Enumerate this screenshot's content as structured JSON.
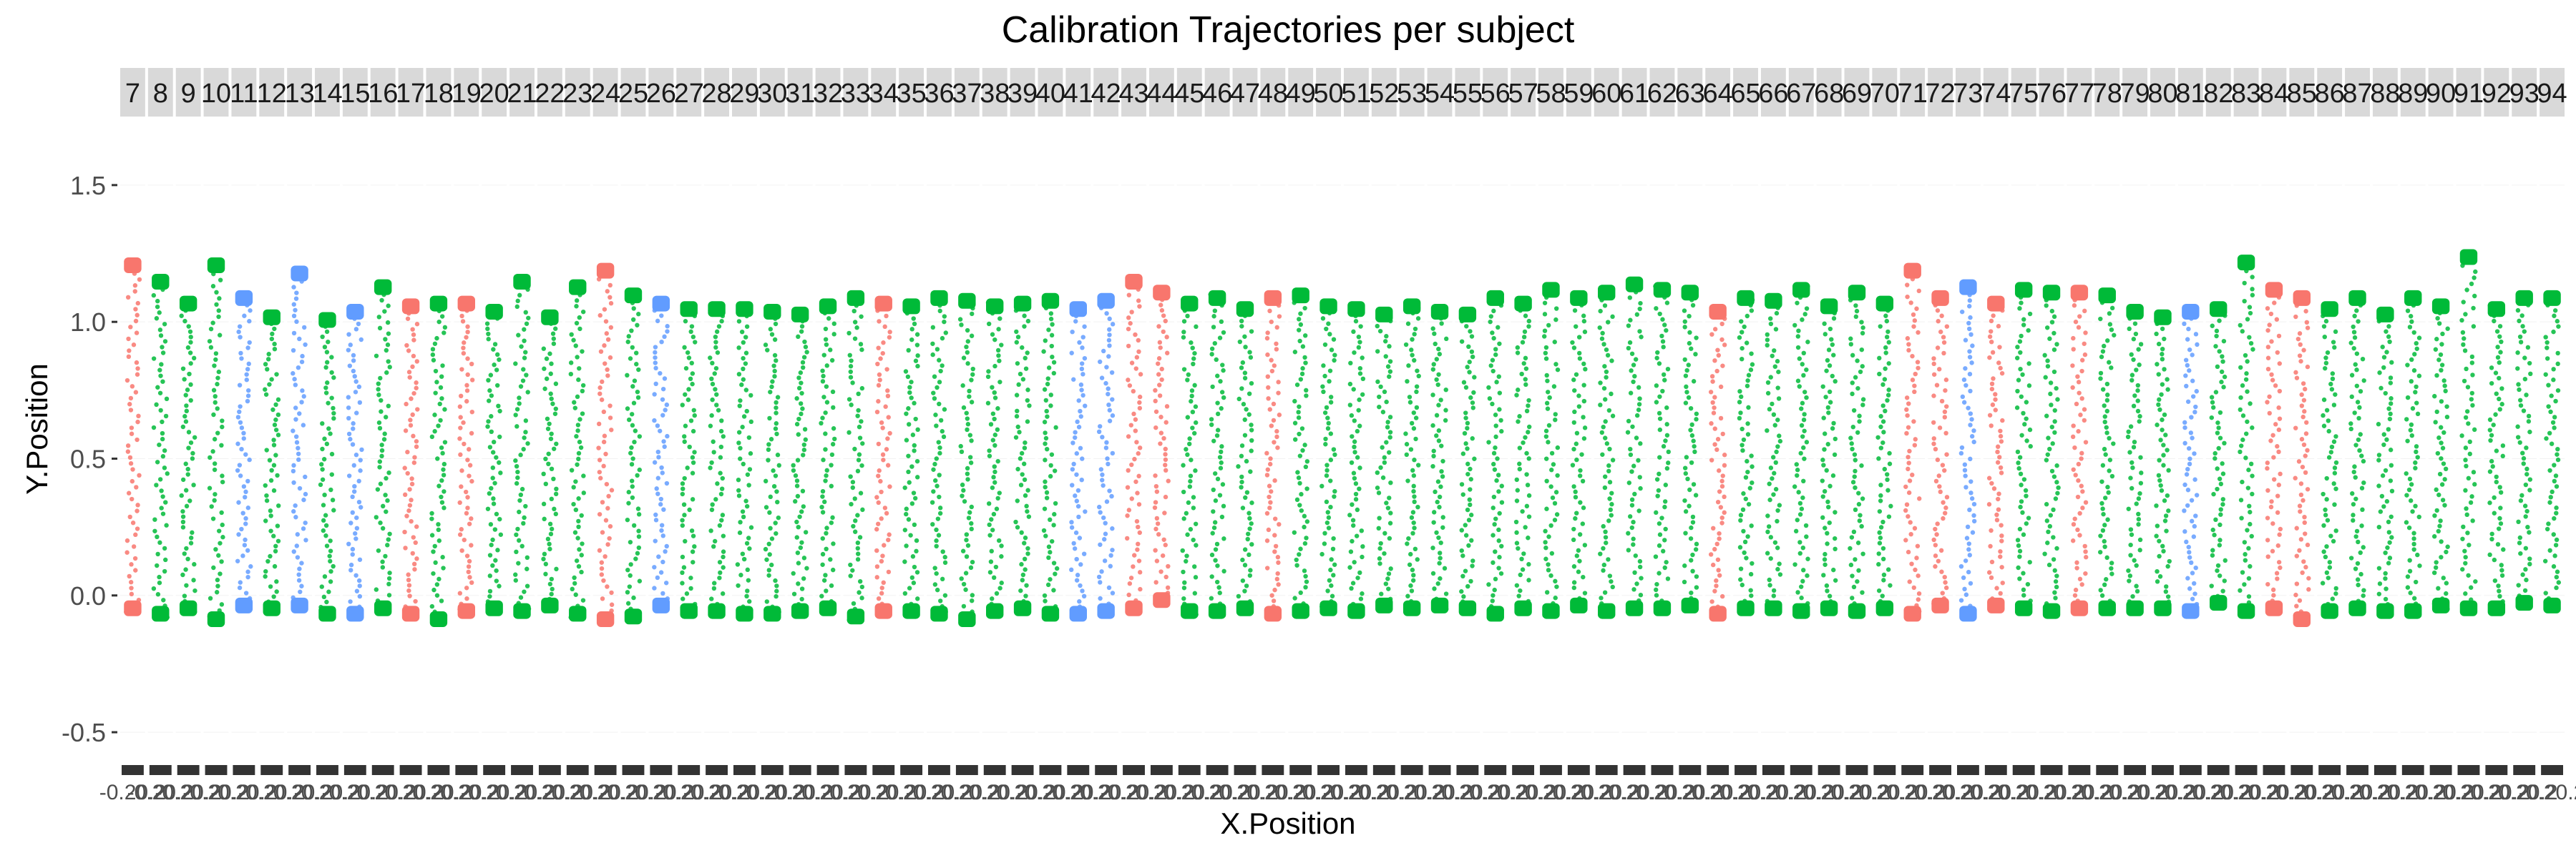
{
  "chart_data": {
    "type": "scatter",
    "title": "Calibration Trajectories per subject",
    "xlabel": "X.Position",
    "ylabel": "Y.Position",
    "ylim": [
      -0.62,
      1.68
    ],
    "y_ticks": [
      -0.5,
      0.0,
      0.5,
      1.0,
      1.5
    ],
    "y_tick_labels": [
      "-0.5",
      "0.0",
      "0.5",
      "1.0",
      "1.5"
    ],
    "facets": [
      "7",
      "8",
      "9",
      "10",
      "11",
      "12",
      "13",
      "14",
      "15",
      "16",
      "17",
      "18",
      "19",
      "20",
      "21",
      "22",
      "23",
      "24",
      "25",
      "26",
      "27",
      "28",
      "29",
      "30",
      "31",
      "32",
      "33",
      "34",
      "35",
      "36",
      "37",
      "38",
      "39",
      "40",
      "41",
      "42",
      "43",
      "44",
      "45",
      "46",
      "47",
      "48",
      "49",
      "50",
      "51",
      "52",
      "53",
      "54",
      "55",
      "56",
      "57",
      "58",
      "59",
      "60",
      "61",
      "62",
      "63",
      "64",
      "65",
      "66",
      "67",
      "68",
      "69",
      "70",
      "71",
      "72",
      "73",
      "74",
      "75",
      "76",
      "77",
      "78",
      "79",
      "80",
      "81",
      "82",
      "83",
      "84",
      "85",
      "86",
      "87",
      "88",
      "89",
      "90",
      "91",
      "92",
      "93",
      "94"
    ],
    "facet_x_tick_labels": [
      "-0.2",
      "0.2"
    ],
    "series_colors": {
      "red": "#f8766d",
      "green": "#00ba38",
      "blue": "#619cff"
    },
    "facet_color": [
      "red",
      "green",
      "green",
      "green",
      "blue",
      "green",
      "blue",
      "green",
      "blue",
      "green",
      "red",
      "green",
      "red",
      "green",
      "green",
      "green",
      "green",
      "red",
      "green",
      "blue",
      "green",
      "green",
      "green",
      "green",
      "green",
      "green",
      "green",
      "red",
      "green",
      "green",
      "green",
      "green",
      "green",
      "green",
      "blue",
      "blue",
      "red",
      "red",
      "green",
      "green",
      "green",
      "red",
      "green",
      "green",
      "green",
      "green",
      "green",
      "green",
      "green",
      "green",
      "green",
      "green",
      "green",
      "green",
      "green",
      "green",
      "green",
      "red",
      "green",
      "green",
      "green",
      "green",
      "green",
      "green",
      "red",
      "red",
      "blue",
      "red",
      "green",
      "green",
      "red",
      "green",
      "green",
      "green",
      "blue",
      "green",
      "green",
      "red",
      "red",
      "green",
      "green",
      "green",
      "green",
      "green",
      "green",
      "green",
      "green",
      "green"
    ],
    "facet_y_range": [
      [
        -0.06,
        1.22
      ],
      [
        -0.08,
        1.16
      ],
      [
        -0.06,
        1.08
      ],
      [
        -0.1,
        1.22
      ],
      [
        -0.05,
        1.1
      ],
      [
        -0.06,
        1.03
      ],
      [
        -0.05,
        1.19
      ],
      [
        -0.08,
        1.02
      ],
      [
        -0.08,
        1.05
      ],
      [
        -0.06,
        1.14
      ],
      [
        -0.08,
        1.07
      ],
      [
        -0.1,
        1.08
      ],
      [
        -0.07,
        1.08
      ],
      [
        -0.06,
        1.05
      ],
      [
        -0.07,
        1.16
      ],
      [
        -0.05,
        1.03
      ],
      [
        -0.08,
        1.14
      ],
      [
        -0.1,
        1.2
      ],
      [
        -0.09,
        1.11
      ],
      [
        -0.05,
        1.08
      ],
      [
        -0.07,
        1.06
      ],
      [
        -0.07,
        1.06
      ],
      [
        -0.08,
        1.06
      ],
      [
        -0.08,
        1.05
      ],
      [
        -0.07,
        1.04
      ],
      [
        -0.06,
        1.07
      ],
      [
        -0.09,
        1.1
      ],
      [
        -0.07,
        1.08
      ],
      [
        -0.07,
        1.07
      ],
      [
        -0.08,
        1.1
      ],
      [
        -0.1,
        1.09
      ],
      [
        -0.07,
        1.07
      ],
      [
        -0.06,
        1.08
      ],
      [
        -0.08,
        1.09
      ],
      [
        -0.08,
        1.06
      ],
      [
        -0.07,
        1.09
      ],
      [
        -0.06,
        1.16
      ],
      [
        -0.03,
        1.12
      ],
      [
        -0.07,
        1.08
      ],
      [
        -0.07,
        1.1
      ],
      [
        -0.06,
        1.06
      ],
      [
        -0.08,
        1.1
      ],
      [
        -0.07,
        1.11
      ],
      [
        -0.06,
        1.07
      ],
      [
        -0.07,
        1.06
      ],
      [
        -0.05,
        1.04
      ],
      [
        -0.06,
        1.07
      ],
      [
        -0.05,
        1.05
      ],
      [
        -0.06,
        1.04
      ],
      [
        -0.08,
        1.1
      ],
      [
        -0.06,
        1.08
      ],
      [
        -0.07,
        1.13
      ],
      [
        -0.05,
        1.1
      ],
      [
        -0.07,
        1.12
      ],
      [
        -0.06,
        1.15
      ],
      [
        -0.06,
        1.13
      ],
      [
        -0.05,
        1.12
      ],
      [
        -0.08,
        1.05
      ],
      [
        -0.06,
        1.1
      ],
      [
        -0.06,
        1.09
      ],
      [
        -0.07,
        1.13
      ],
      [
        -0.06,
        1.07
      ],
      [
        -0.07,
        1.12
      ],
      [
        -0.06,
        1.08
      ],
      [
        -0.08,
        1.2
      ],
      [
        -0.05,
        1.1
      ],
      [
        -0.08,
        1.14
      ],
      [
        -0.05,
        1.08
      ],
      [
        -0.06,
        1.13
      ],
      [
        -0.07,
        1.12
      ],
      [
        -0.06,
        1.12
      ],
      [
        -0.06,
        1.11
      ],
      [
        -0.06,
        1.05
      ],
      [
        -0.06,
        1.03
      ],
      [
        -0.07,
        1.05
      ],
      [
        -0.04,
        1.06
      ],
      [
        -0.07,
        1.23
      ],
      [
        -0.06,
        1.13
      ],
      [
        -0.1,
        1.1
      ],
      [
        -0.07,
        1.06
      ],
      [
        -0.06,
        1.1
      ],
      [
        -0.07,
        1.04
      ],
      [
        -0.07,
        1.1
      ],
      [
        -0.05,
        1.07
      ],
      [
        -0.06,
        1.25
      ],
      [
        -0.06,
        1.06
      ],
      [
        -0.04,
        1.1
      ],
      [
        -0.05,
        1.1
      ]
    ],
    "grid": true,
    "legend": "none"
  }
}
